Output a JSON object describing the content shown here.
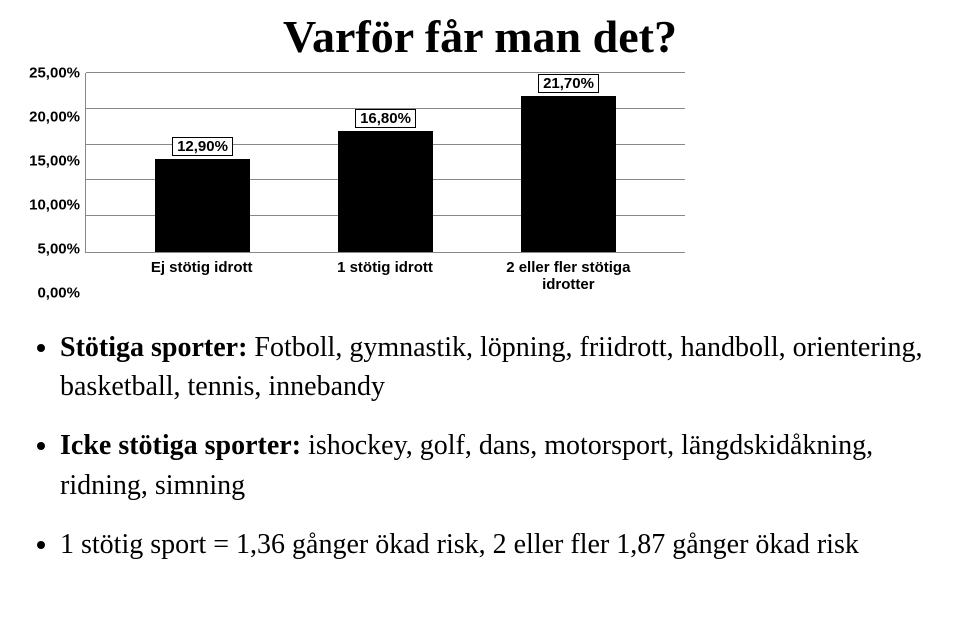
{
  "title": "Varför får man det?",
  "chart": {
    "type": "bar",
    "ymax": 25,
    "ystep": 5,
    "yticks": [
      "0,00%",
      "5,00%",
      "10,00%",
      "15,00%",
      "20,00%",
      "25,00%"
    ],
    "bar_color": "#000000",
    "border_color": "#000000",
    "grid_color": "#888888",
    "bg_color": "#ffffff",
    "bars": [
      {
        "category": "Ej stötig idrott",
        "value": 12.9,
        "label": "12,90%"
      },
      {
        "category": "1 stötig idrott",
        "value": 16.8,
        "label": "16,80%"
      },
      {
        "category": "2 eller fler stötiga idrotter",
        "value": 21.7,
        "label": "21,70%"
      }
    ]
  },
  "bullets": [
    {
      "bold": "Stötiga sporter:",
      "rest": " Fotboll, gymnastik, löpning, friidrott, handboll, orientering, basketball, tennis, innebandy"
    },
    {
      "bold": "Icke stötiga sporter:",
      "rest": " ishockey, golf, dans, motorsport, längdskidåkning, ridning, simning"
    },
    {
      "bold": "",
      "rest": "1 stötig sport = 1,36 gånger ökad risk, 2 eller fler 1,87 gånger ökad risk"
    }
  ]
}
